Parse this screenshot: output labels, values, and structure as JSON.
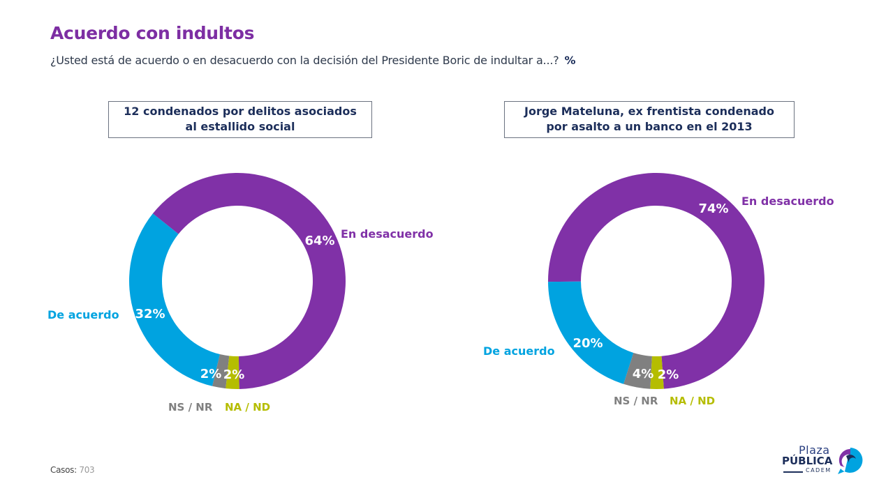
{
  "header": {
    "title": "Acuerdo con indultos",
    "subtitle": "¿Usted está de acuerdo o en desacuerdo con la decisión del Presidente Boric de indultar a...?",
    "unit": "%"
  },
  "colors": {
    "en_desacuerdo": "#8031a7",
    "de_acuerdo": "#00a3e0",
    "ns_nr": "#808080",
    "na_nd": "#b5bd00"
  },
  "chart_data": [
    {
      "type": "pie",
      "title": "12 condenados por delitos asociados al estallido social",
      "title_lines": [
        "12 condenados por delitos asociados",
        "al estallido social"
      ],
      "donut": true,
      "categories": [
        "En desacuerdo",
        "De acuerdo",
        "NS / NR",
        "NA / ND"
      ],
      "values": [
        64,
        32,
        2,
        2
      ],
      "value_labels": [
        "64%",
        "32%",
        "2%",
        "2%"
      ]
    },
    {
      "type": "pie",
      "title": "Jorge Mateluna, ex frentista condenado por asalto a un banco en el 2013",
      "title_lines": [
        "Jorge Mateluna, ex frentista condenado",
        "por asalto a un banco en el 2013"
      ],
      "donut": true,
      "categories": [
        "En desacuerdo",
        "De acuerdo",
        "NS / NR",
        "NA / ND"
      ],
      "values": [
        74,
        20,
        4,
        2
      ],
      "value_labels": [
        "74%",
        "20%",
        "4%",
        "2%"
      ]
    }
  ],
  "footer": {
    "casos_label": "Casos",
    "casos_value": "703"
  },
  "logo": {
    "line1": "Plaza",
    "line2": "PÚBLICA",
    "line3": "CADEM"
  }
}
